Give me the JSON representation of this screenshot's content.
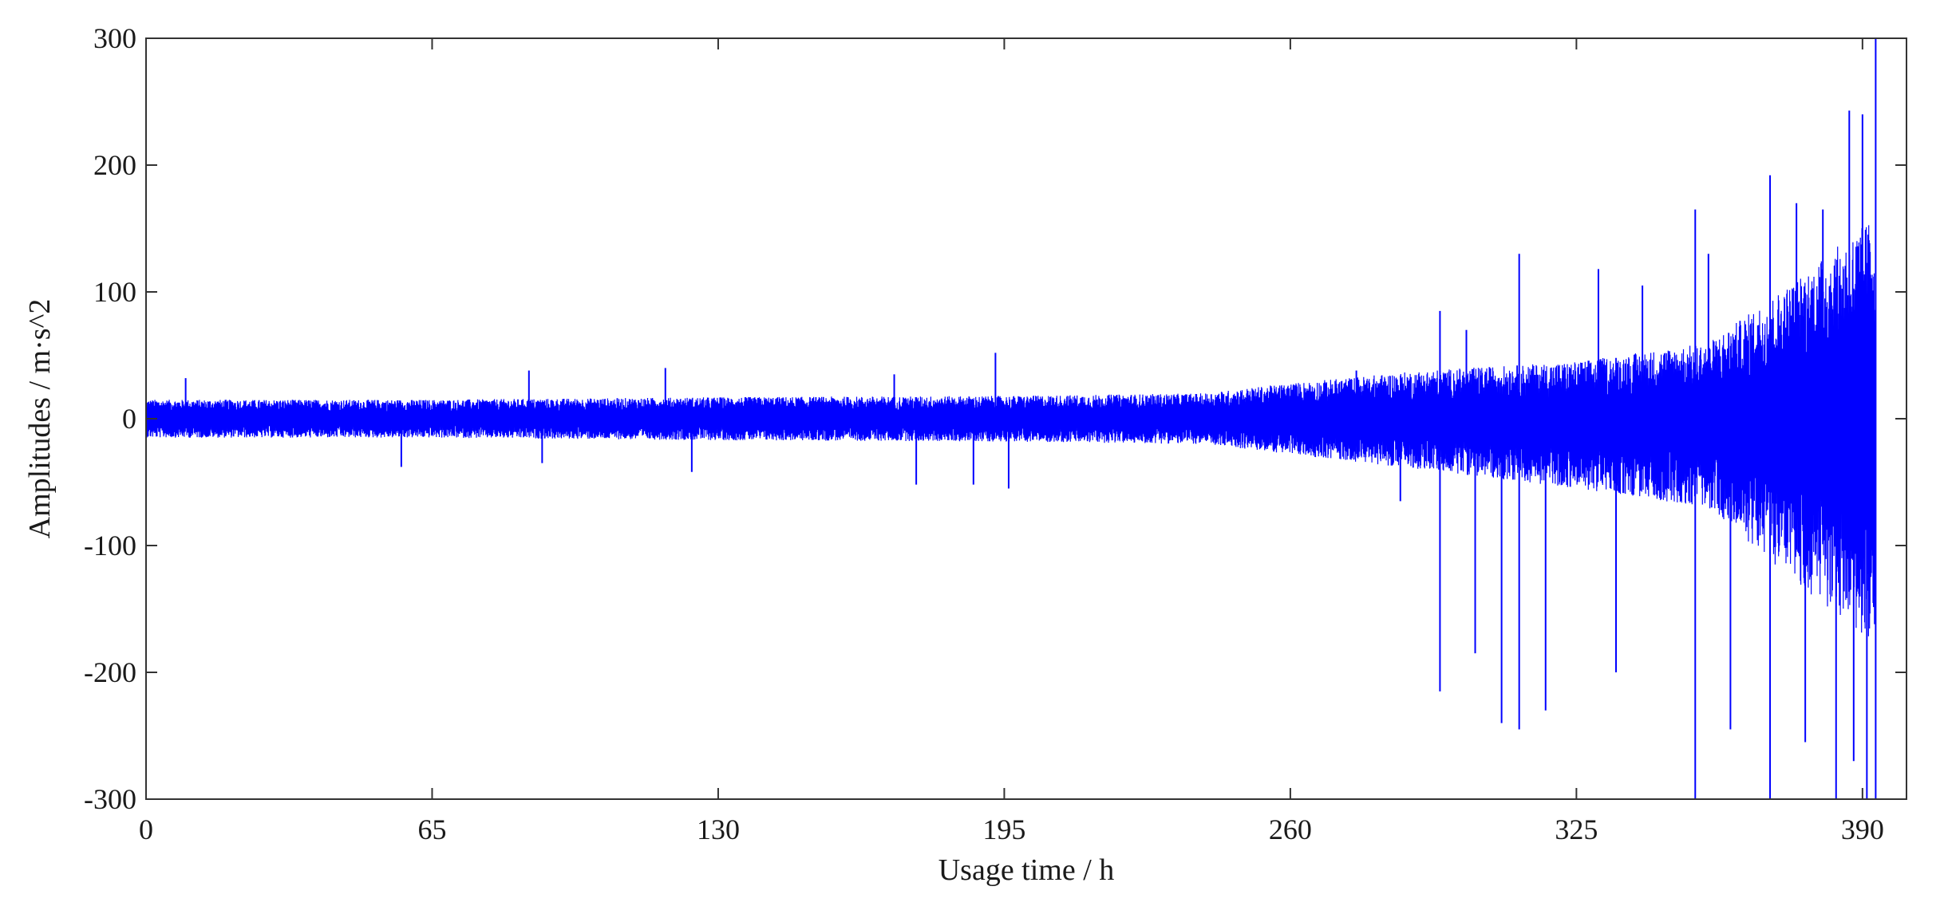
{
  "chart_data": {
    "type": "line",
    "xlabel": "Usage time / h",
    "ylabel": "Amplitudes / m·s^2",
    "xlim": [
      0,
      400
    ],
    "ylim": [
      -300,
      300
    ],
    "x_ticks": [
      0,
      65,
      130,
      195,
      260,
      325,
      390
    ],
    "y_ticks": [
      300,
      200,
      100,
      0,
      -100,
      -200,
      -300
    ],
    "grid": false,
    "series_color": "#0000ff",
    "series": [
      {
        "envelope_segments": [
          {
            "x": 0,
            "upper": 15,
            "lower": -15
          },
          {
            "x": 65,
            "upper": 15,
            "lower": -15
          },
          {
            "x": 130,
            "upper": 17,
            "lower": -17
          },
          {
            "x": 195,
            "upper": 18,
            "lower": -18
          },
          {
            "x": 240,
            "upper": 20,
            "lower": -20
          },
          {
            "x": 260,
            "upper": 28,
            "lower": -28
          },
          {
            "x": 290,
            "upper": 38,
            "lower": -40
          },
          {
            "x": 325,
            "upper": 45,
            "lower": -55
          },
          {
            "x": 355,
            "upper": 60,
            "lower": -70
          },
          {
            "x": 375,
            "upper": 110,
            "lower": -130
          },
          {
            "x": 393,
            "upper": 160,
            "lower": -180
          }
        ],
        "spikes": [
          {
            "x": 9,
            "y": 32
          },
          {
            "x": 58,
            "y": -38
          },
          {
            "x": 87,
            "y": 38
          },
          {
            "x": 90,
            "y": -35
          },
          {
            "x": 118,
            "y": 40
          },
          {
            "x": 124,
            "y": -42
          },
          {
            "x": 170,
            "y": 35
          },
          {
            "x": 175,
            "y": -52
          },
          {
            "x": 188,
            "y": -52
          },
          {
            "x": 193,
            "y": 52
          },
          {
            "x": 196,
            "y": -55
          },
          {
            "x": 275,
            "y": 38
          },
          {
            "x": 285,
            "y": -65
          },
          {
            "x": 294,
            "y": 85
          },
          {
            "x": 294,
            "y": -215
          },
          {
            "x": 300,
            "y": 70
          },
          {
            "x": 302,
            "y": -185
          },
          {
            "x": 308,
            "y": -240
          },
          {
            "x": 312,
            "y": 130
          },
          {
            "x": 312,
            "y": -245
          },
          {
            "x": 318,
            "y": -230
          },
          {
            "x": 330,
            "y": 118
          },
          {
            "x": 334,
            "y": -200
          },
          {
            "x": 340,
            "y": 105
          },
          {
            "x": 352,
            "y": 165
          },
          {
            "x": 352,
            "y": -300
          },
          {
            "x": 355,
            "y": 130
          },
          {
            "x": 360,
            "y": -245
          },
          {
            "x": 369,
            "y": 192
          },
          {
            "x": 369,
            "y": -300
          },
          {
            "x": 375,
            "y": 170
          },
          {
            "x": 377,
            "y": -255
          },
          {
            "x": 381,
            "y": 165
          },
          {
            "x": 384,
            "y": -300
          },
          {
            "x": 387,
            "y": 243
          },
          {
            "x": 388,
            "y": -270
          },
          {
            "x": 390,
            "y": 240
          },
          {
            "x": 391,
            "y": -300
          },
          {
            "x": 393,
            "y": 300
          },
          {
            "x": 393,
            "y": -300
          }
        ]
      }
    ]
  }
}
